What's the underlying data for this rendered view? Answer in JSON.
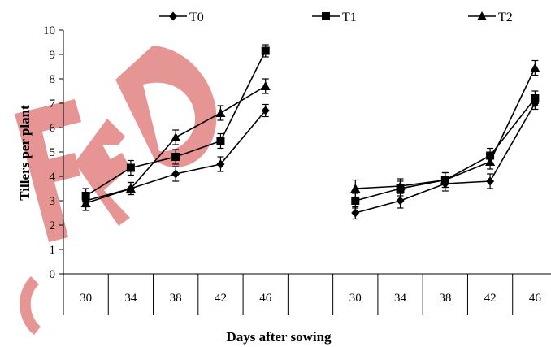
{
  "chart_data": {
    "type": "line",
    "title": "",
    "xlabel": "Days after sowing",
    "ylabel": "Tillers per plant",
    "ylim": [
      0,
      10
    ],
    "yticks": [
      0,
      1,
      2,
      3,
      4,
      5,
      6,
      7,
      8,
      9,
      10
    ],
    "groups": [
      {
        "categories": [
          "30",
          "34",
          "38",
          "42",
          "46"
        ],
        "series": [
          {
            "name": "T0",
            "marker": "diamond",
            "values": [
              3.0,
              3.5,
              4.1,
              4.5,
              6.7
            ],
            "errors": [
              0.25,
              0.25,
              0.3,
              0.3,
              0.25
            ]
          },
          {
            "name": "T1",
            "marker": "square",
            "values": [
              3.2,
              4.35,
              4.8,
              5.45,
              9.15
            ],
            "errors": [
              0.3,
              0.3,
              0.3,
              0.3,
              0.25
            ]
          },
          {
            "name": "T2",
            "marker": "triangle",
            "values": [
              2.9,
              3.5,
              5.6,
              6.6,
              7.7
            ],
            "errors": [
              0.3,
              0.25,
              0.3,
              0.3,
              0.3
            ]
          }
        ]
      },
      {
        "categories": [
          "30",
          "34",
          "38",
          "42",
          "46"
        ],
        "series": [
          {
            "name": "T0",
            "marker": "diamond",
            "values": [
              2.5,
              3.0,
              3.7,
              3.8,
              7.0
            ],
            "errors": [
              0.25,
              0.3,
              0.3,
              0.3,
              0.25
            ]
          },
          {
            "name": "T1",
            "marker": "square",
            "values": [
              3.0,
              3.5,
              3.85,
              4.85,
              7.2
            ],
            "errors": [
              0.3,
              0.3,
              0.3,
              0.3,
              0.3
            ]
          },
          {
            "name": "T2",
            "marker": "triangle",
            "values": [
              3.5,
              3.6,
              3.85,
              4.6,
              8.45
            ],
            "errors": [
              0.35,
              0.3,
              0.3,
              0.3,
              0.3
            ]
          }
        ]
      }
    ],
    "legend": {
      "position": "top",
      "entries": [
        "T0",
        "T1",
        "T2"
      ]
    },
    "grid": false,
    "colors": {
      "series": "#000000",
      "watermark": "#e07a7a"
    }
  }
}
